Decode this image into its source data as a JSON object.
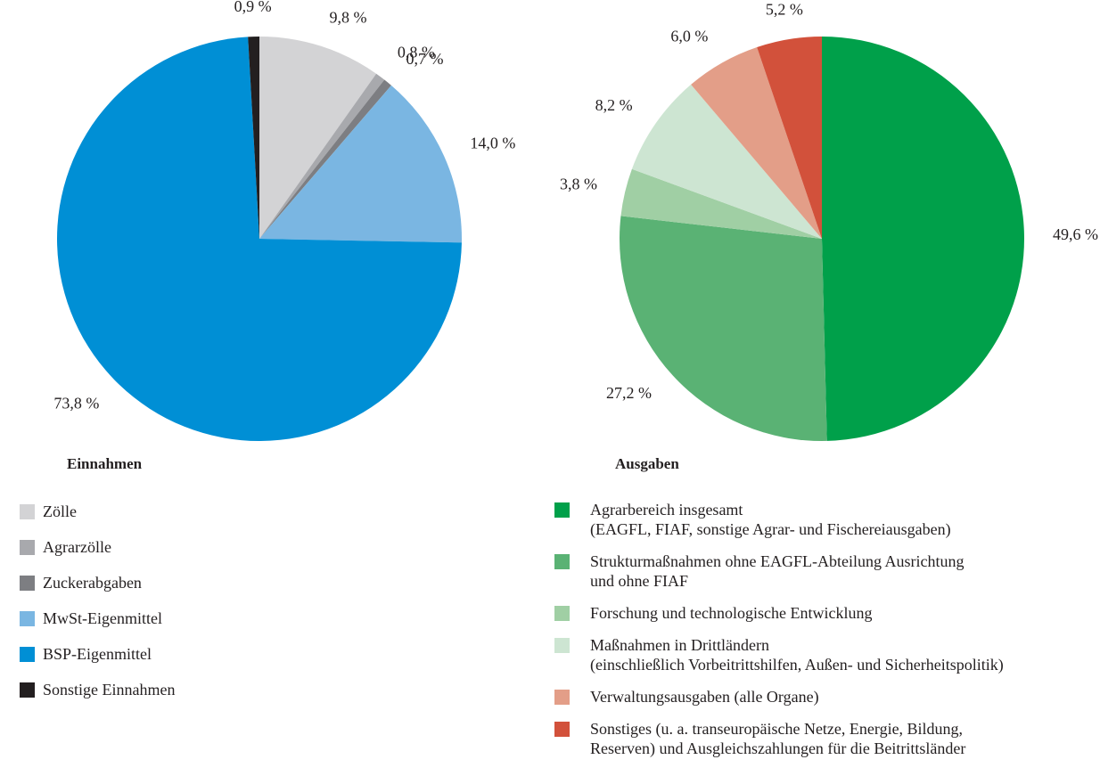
{
  "chart_data": [
    {
      "type": "pie",
      "title": "Einnahmen",
      "categories": [
        "Zölle",
        "Agrarzölle",
        "Zuckerabgaben",
        "MwSt-Eigenmittel",
        "BSP-Eigenmittel",
        "Sonstige Einnahmen"
      ],
      "values": [
        9.8,
        0.8,
        0.7,
        14.0,
        73.8,
        0.9
      ],
      "value_labels": [
        "9,8 %",
        "0,8 %",
        "0,7 %",
        "14,0 %",
        "73,8 %",
        "0,9 %"
      ],
      "colors": [
        "#d3d3d5",
        "#a8a9ad",
        "#7d7e82",
        "#7ab6e2",
        "#008fd5",
        "#231f20"
      ]
    },
    {
      "type": "pie",
      "title": "Ausgaben",
      "categories": [
        "Agrarbereich insgesamt\n(EAGFL, FIAF, sonstige Agrar- und Fischereiausgaben)",
        "Strukturmaßnahmen ohne EAGFL-Abteilung Ausrichtung\nund ohne FIAF",
        "Forschung und technologische Entwicklung",
        "Maßnahmen in Drittländern\n(einschließlich Vorbeitrittshilfen, Außen- und Sicherheitspolitik)",
        "Verwaltungsausgaben (alle Organe)",
        "Sonstiges (u. a. transeuropäische Netze, Energie, Bildung,\nReserven) und Ausgleichszahlungen für die Beitrittsländer"
      ],
      "values": [
        49.6,
        27.2,
        3.8,
        8.2,
        6.0,
        5.2
      ],
      "value_labels": [
        "49,6 %",
        "27,2 %",
        "3,8 %",
        "8,2 %",
        "6,0 %",
        "5,2 %"
      ],
      "colors": [
        "#00a04a",
        "#5ab274",
        "#a0cfa4",
        "#cde5d2",
        "#e39e88",
        "#d2513b"
      ]
    }
  ]
}
